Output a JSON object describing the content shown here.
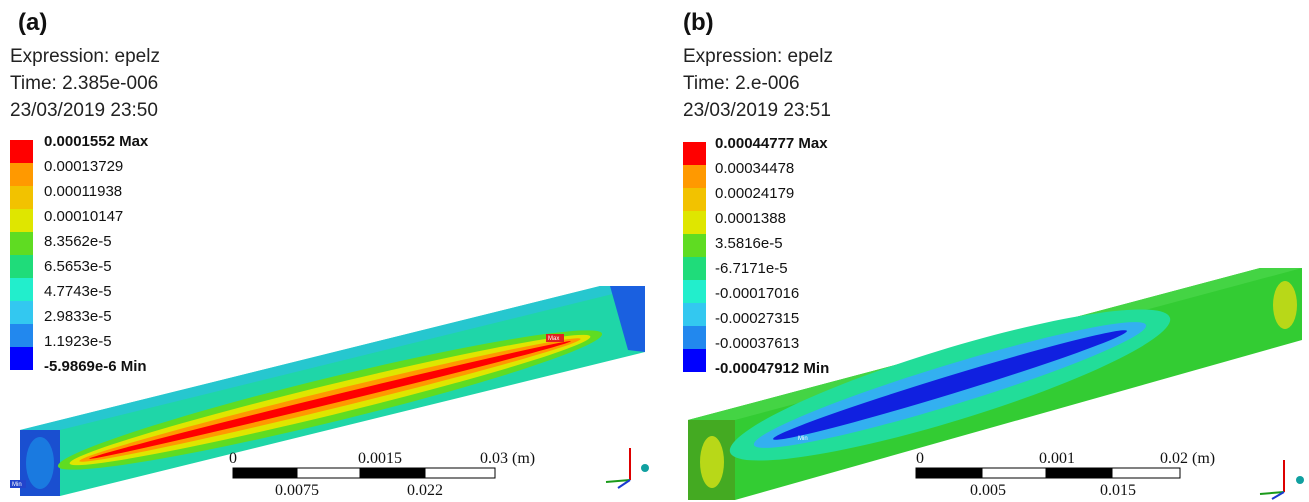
{
  "legend_colors": [
    "#ff0000",
    "#ff9900",
    "#f2c200",
    "#dfe600",
    "#5fdc22",
    "#1fdc7a",
    "#22eecc",
    "#33c8f0",
    "#2288ee",
    "#0000ff"
  ],
  "panels": [
    {
      "label": "(a)",
      "expression": "Expression: epelz",
      "time": "Time: 2.385e-006",
      "date": "23/03/2019 23:50",
      "legend": [
        "0.0001552 Max",
        "0.00013729",
        "0.00011938",
        "0.00010147",
        "8.3562e-5",
        "6.5653e-5",
        "4.7743e-5",
        "2.9833e-5",
        "1.1923e-5",
        "-5.9869e-6 Min"
      ],
      "scale_top": [
        "0",
        "0.0015",
        "0.03 (m)"
      ],
      "scale_bottom": [
        "0.0075",
        "0.022"
      ],
      "probe_max": "Max",
      "probe_min": "Min"
    },
    {
      "label": "(b)",
      "expression": "Expression: epelz",
      "time": "Time: 2.e-006",
      "date": "23/03/2019 23:51",
      "legend": [
        "0.00044777 Max",
        "0.00034478",
        "0.00024179",
        "0.0001388",
        "3.5816e-5",
        "-6.7171e-5",
        "-0.00017016",
        "-0.00027315",
        "-0.00037613",
        "-0.00047912 Min"
      ],
      "scale_top": [
        "0",
        "0.001",
        "0.02 (m)"
      ],
      "scale_bottom": [
        "0.005",
        "0.015"
      ],
      "probe_min": "Min"
    }
  ]
}
